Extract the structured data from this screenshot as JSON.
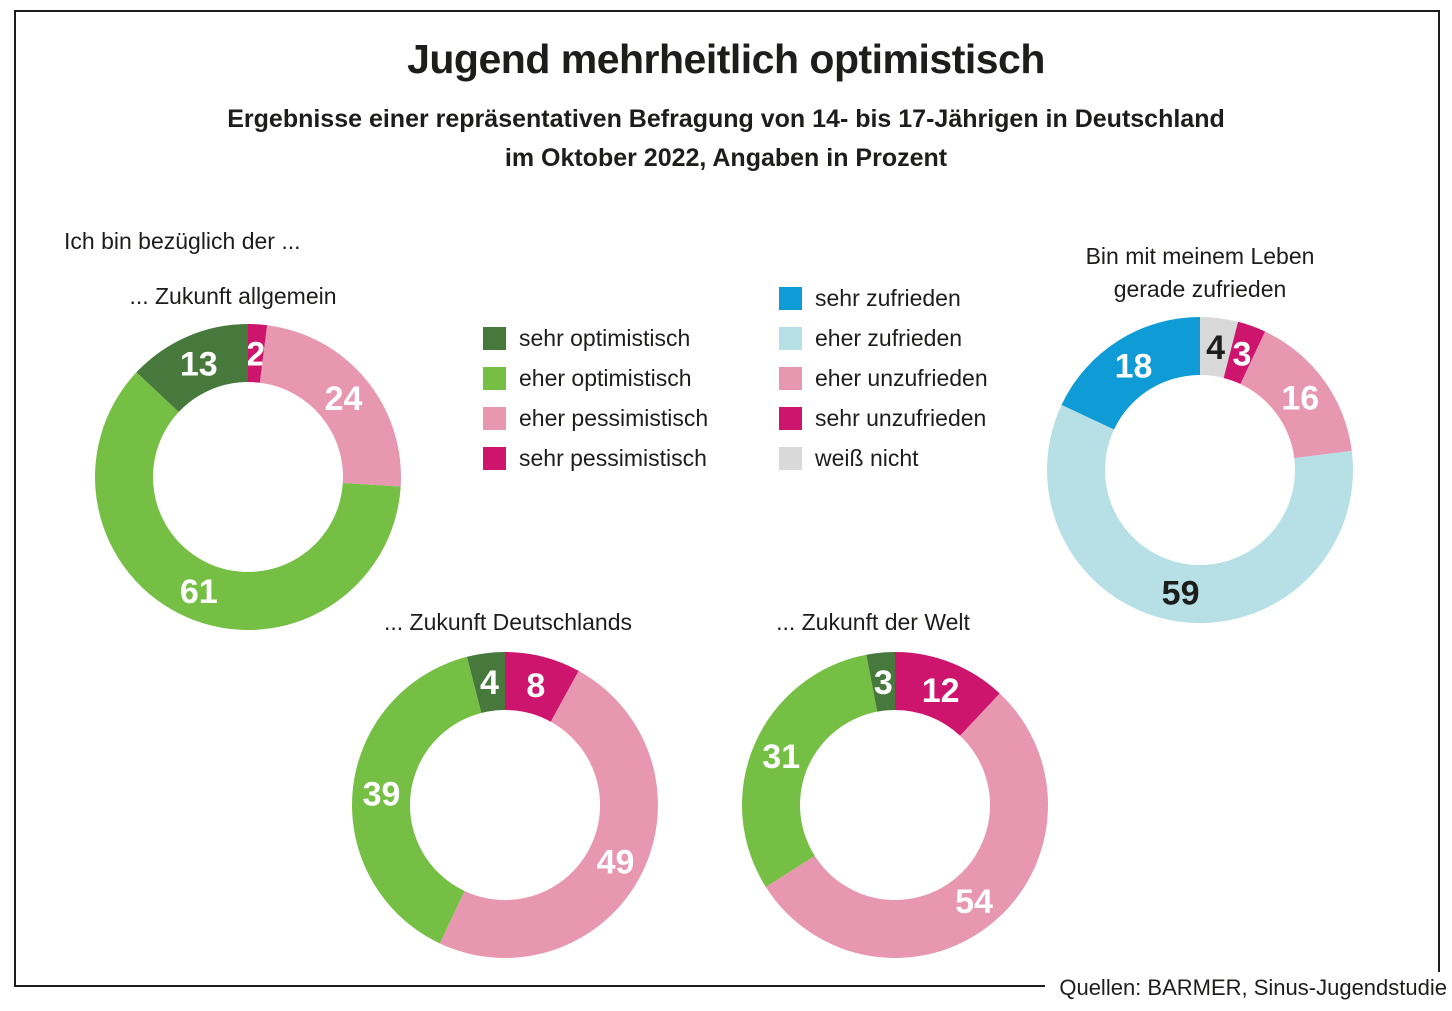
{
  "header": {
    "title": "Jugend mehrheitlich optimistisch",
    "subtitle_line1": "Ergebnisse einer repräsentativen Befragung von 14- bis 17-Jährigen in Deutschland",
    "subtitle_line2": "im Oktober 2022, Angaben in Prozent"
  },
  "intro_label": "Ich bin bezüglich der ...",
  "source": "Quellen: BARMER, Sinus-Jugendstudie",
  "palette": {
    "darkgreen": "#46793b",
    "green": "#76bf45",
    "pink": "#e897b1",
    "magenta": "#ce156d",
    "blue": "#0f9bd5",
    "lightblue": "#b6dfe6",
    "gray": "#d9d9da",
    "text_dark": "#1d1d1b",
    "text_light": "#ffffff"
  },
  "legends": [
    {
      "id": "optimism",
      "items": [
        {
          "label": "sehr optimistisch",
          "color": "darkgreen"
        },
        {
          "label": "eher optimistisch",
          "color": "green"
        },
        {
          "label": "eher pessimistisch",
          "color": "pink"
        },
        {
          "label": "sehr pessimistisch",
          "color": "magenta"
        }
      ]
    },
    {
      "id": "satisfaction",
      "items": [
        {
          "label": "sehr zufrieden",
          "color": "blue"
        },
        {
          "label": "eher zufrieden",
          "color": "lightblue"
        },
        {
          "label": "eher unzufrieden",
          "color": "pink"
        },
        {
          "label": "sehr unzufrieden",
          "color": "magenta"
        },
        {
          "label": "weiß nicht",
          "color": "gray"
        }
      ]
    }
  ],
  "chart_data": [
    {
      "type": "donut",
      "id": "zukunft-allgemein",
      "title_lines": [
        "... Zukunft allgemein"
      ],
      "unit": "percent",
      "start_angle_deg": 0,
      "direction": "clockwise",
      "slices": [
        {
          "label": "sehr pessimistisch",
          "value": 2,
          "color": "magenta",
          "value_label_color": "light"
        },
        {
          "label": "eher pessimistisch",
          "value": 24,
          "color": "pink",
          "value_label_color": "light"
        },
        {
          "label": "eher optimistisch",
          "value": 61,
          "color": "green",
          "value_label_color": "light"
        },
        {
          "label": "sehr optimistisch",
          "value": 13,
          "color": "darkgreen",
          "value_label_color": "light"
        }
      ]
    },
    {
      "type": "donut",
      "id": "zukunft-deutschlands",
      "title_lines": [
        "... Zukunft Deutschlands"
      ],
      "unit": "percent",
      "start_angle_deg": 0,
      "direction": "clockwise",
      "slices": [
        {
          "label": "sehr pessimistisch",
          "value": 8,
          "color": "magenta",
          "value_label_color": "light"
        },
        {
          "label": "eher pessimistisch",
          "value": 49,
          "color": "pink",
          "value_label_color": "light"
        },
        {
          "label": "eher optimistisch",
          "value": 39,
          "color": "green",
          "value_label_color": "light"
        },
        {
          "label": "sehr optimistisch",
          "value": 4,
          "color": "darkgreen",
          "value_label_color": "light"
        }
      ]
    },
    {
      "type": "donut",
      "id": "zukunft-der-welt",
      "title_lines": [
        "... Zukunft der Welt"
      ],
      "unit": "percent",
      "start_angle_deg": 0,
      "direction": "clockwise",
      "slices": [
        {
          "label": "sehr pessimistisch",
          "value": 12,
          "color": "magenta",
          "value_label_color": "light"
        },
        {
          "label": "eher pessimistisch",
          "value": 54,
          "color": "pink",
          "value_label_color": "light"
        },
        {
          "label": "eher optimistisch",
          "value": 31,
          "color": "green",
          "value_label_color": "light"
        },
        {
          "label": "sehr optimistisch",
          "value": 3,
          "color": "darkgreen",
          "value_label_color": "light"
        }
      ]
    },
    {
      "type": "donut",
      "id": "leben-zufrieden",
      "title_lines": [
        "Bin mit meinem Leben",
        "gerade zufrieden"
      ],
      "unit": "percent",
      "start_angle_deg": 0,
      "direction": "clockwise",
      "slices": [
        {
          "label": "weiß nicht",
          "value": 4,
          "color": "gray",
          "value_label_color": "dark"
        },
        {
          "label": "sehr unzufrieden",
          "value": 3,
          "color": "magenta",
          "value_label_color": "light"
        },
        {
          "label": "eher unzufrieden",
          "value": 16,
          "color": "pink",
          "value_label_color": "light"
        },
        {
          "label": "eher zufrieden",
          "value": 59,
          "color": "lightblue",
          "value_label_color": "dark"
        },
        {
          "label": "sehr zufrieden",
          "value": 18,
          "color": "blue",
          "value_label_color": "light"
        }
      ]
    }
  ]
}
